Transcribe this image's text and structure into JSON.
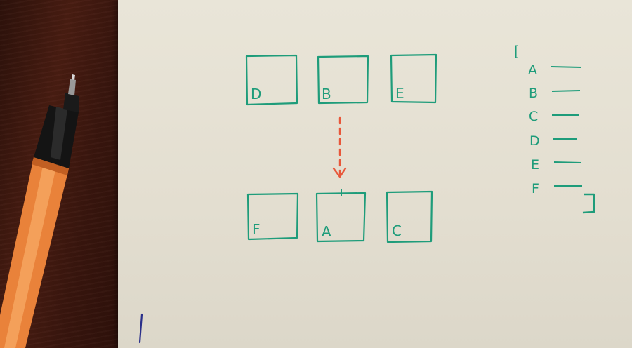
{
  "grid_top": [
    {
      "id": "tile-d",
      "label": "D"
    },
    {
      "id": "tile-b",
      "label": "B"
    },
    {
      "id": "tile-e",
      "label": "E"
    }
  ],
  "grid_bottom": [
    {
      "id": "tile-f",
      "label": "F"
    },
    {
      "id": "tile-a",
      "label": "A"
    },
    {
      "id": "tile-c",
      "label": "C"
    }
  ],
  "list": {
    "open_bracket": "[",
    "close_bracket": "]",
    "items": [
      "A",
      "B",
      "C",
      "D",
      "E",
      "F"
    ]
  },
  "colors": {
    "ink_green": "#1e9c7a",
    "arrow_orange": "#e8573a",
    "pen_orange": "#e9823a",
    "desk": "#3a1a10",
    "paper": "#e6e2d5"
  },
  "icons": {
    "pen": "orange-felt-tip-pen",
    "arrow": "dotted-down-arrow"
  }
}
